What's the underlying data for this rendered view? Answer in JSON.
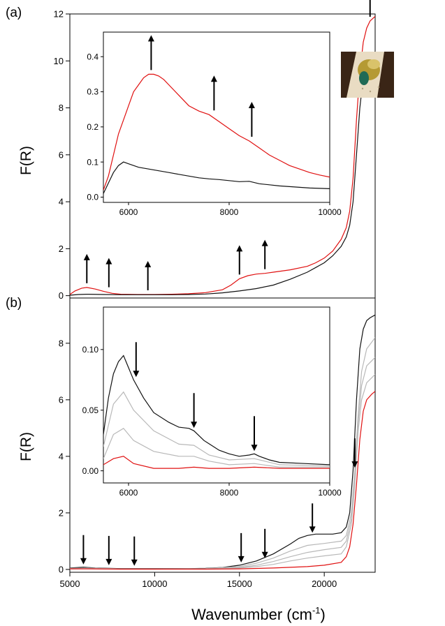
{
  "figure": {
    "xlabel_main": "Wavenumber (cm",
    "xlabel_sup": "-1",
    "ylabel_a": "F(R)",
    "ylabel_b": "F(R)",
    "label_a": "(a)",
    "label_b": "(b)"
  },
  "colors": {
    "red": "#e01010",
    "black": "#111111",
    "gray": "#b8b8b8",
    "axis": "#000000"
  },
  "chart_data": [
    {
      "id": "a-main",
      "type": "line",
      "panel": "(a)",
      "ylabel": "F(R)",
      "xlim": [
        5000,
        23000
      ],
      "ylim": [
        -0.1,
        12
      ],
      "y_ticks": [
        0,
        2,
        4,
        6,
        8,
        10,
        12
      ],
      "x_ticks": [
        5000,
        10000,
        15000,
        20000
      ],
      "series": [
        {
          "color": "#e01010",
          "x": [
            5000,
            5300,
            5700,
            6000,
            6500,
            7000,
            7500,
            8000,
            9000,
            10000,
            11000,
            12000,
            13000,
            14000,
            14500,
            15000,
            15500,
            16000,
            16500,
            17000,
            18000,
            19000,
            19500,
            20000,
            20500,
            21000,
            21300,
            21500,
            21700,
            21900,
            22100,
            22300,
            22500,
            22700,
            23000
          ],
          "y": [
            0.05,
            0.2,
            0.32,
            0.35,
            0.28,
            0.18,
            0.1,
            0.06,
            0.05,
            0.05,
            0.06,
            0.08,
            0.13,
            0.25,
            0.45,
            0.72,
            0.85,
            0.92,
            0.95,
            1.0,
            1.1,
            1.25,
            1.4,
            1.6,
            1.9,
            2.4,
            2.9,
            3.6,
            5.0,
            7.5,
            9.5,
            10.8,
            11.4,
            11.7,
            11.9
          ]
        },
        {
          "color": "#111111",
          "x": [
            5000,
            5500,
            6000,
            7000,
            8000,
            9000,
            10000,
            11000,
            12000,
            13000,
            14000,
            15000,
            16000,
            17000,
            18000,
            19000,
            19500,
            20000,
            20500,
            21000,
            21300,
            21500,
            21700,
            21900,
            22100,
            22300,
            22500,
            22700,
            23000
          ],
          "y": [
            0.02,
            0.05,
            0.06,
            0.05,
            0.04,
            0.04,
            0.04,
            0.04,
            0.05,
            0.07,
            0.12,
            0.2,
            0.3,
            0.45,
            0.7,
            1.0,
            1.2,
            1.4,
            1.7,
            2.1,
            2.5,
            3.0,
            4.0,
            6.0,
            8.0,
            9.3,
            9.9,
            10.2,
            10.4
          ]
        }
      ],
      "arrows": [
        {
          "x": 6000,
          "dir": "up"
        },
        {
          "x": 7300,
          "dir": "up"
        },
        {
          "x": 9600,
          "dir": "up"
        },
        {
          "x": 15000,
          "dir": "up"
        },
        {
          "x": 16500,
          "dir": "up"
        },
        {
          "x": 22700,
          "dir": "up"
        }
      ]
    },
    {
      "id": "a-inset",
      "type": "line",
      "panel": "(a) inset",
      "xlim": [
        5500,
        10000
      ],
      "ylim": [
        -0.015,
        0.47
      ],
      "y_ticks": [
        0.0,
        0.1,
        0.2,
        0.3,
        0.4
      ],
      "y_tick_labels": [
        "0.0",
        "0.1",
        "0.2",
        "0.3",
        "0.4"
      ],
      "x_ticks": [
        6000,
        8000,
        10000
      ],
      "series": [
        {
          "color": "#e01010",
          "x": [
            5500,
            5600,
            5700,
            5800,
            5900,
            6000,
            6100,
            6200,
            6300,
            6400,
            6500,
            6600,
            6700,
            6800,
            6900,
            7000,
            7200,
            7400,
            7600,
            7800,
            8000,
            8200,
            8400,
            8600,
            8800,
            9000,
            9200,
            9400,
            9600,
            9800,
            10000
          ],
          "y": [
            0.02,
            0.06,
            0.12,
            0.18,
            0.22,
            0.26,
            0.3,
            0.32,
            0.34,
            0.35,
            0.35,
            0.345,
            0.335,
            0.32,
            0.305,
            0.29,
            0.26,
            0.245,
            0.235,
            0.215,
            0.195,
            0.175,
            0.16,
            0.14,
            0.12,
            0.105,
            0.09,
            0.08,
            0.07,
            0.063,
            0.057
          ]
        },
        {
          "color": "#111111",
          "x": [
            5500,
            5600,
            5700,
            5800,
            5900,
            6000,
            6200,
            6400,
            6600,
            6800,
            7000,
            7200,
            7400,
            7600,
            7800,
            8000,
            8200,
            8400,
            8600,
            8800,
            9000,
            9200,
            9400,
            9600,
            9800,
            10000
          ],
          "y": [
            0.01,
            0.04,
            0.07,
            0.09,
            0.1,
            0.095,
            0.085,
            0.08,
            0.075,
            0.07,
            0.065,
            0.06,
            0.055,
            0.052,
            0.05,
            0.047,
            0.044,
            0.045,
            0.038,
            0.035,
            0.032,
            0.03,
            0.028,
            0.026,
            0.025,
            0.024
          ]
        }
      ],
      "arrows": [
        {
          "x": 6450,
          "dir": "up"
        },
        {
          "x": 7700,
          "dir": "up"
        },
        {
          "x": 8450,
          "dir": "up"
        }
      ]
    },
    {
      "id": "b-main",
      "type": "line",
      "panel": "(b)",
      "ylabel": "F(R)",
      "xlim": [
        5000,
        23000
      ],
      "ylim": [
        -0.1,
        9.6
      ],
      "y_ticks": [
        0,
        2,
        4,
        6,
        8
      ],
      "x_ticks": [
        5000,
        10000,
        15000,
        20000
      ],
      "x_tick_labels": [
        "5000",
        "10000",
        "15000",
        "20000"
      ],
      "series": [
        {
          "color": "#111111",
          "x": [
            5000,
            5800,
            6500,
            8000,
            10000,
            12000,
            13000,
            14000,
            15000,
            16000,
            17000,
            18000,
            18500,
            19000,
            19500,
            20000,
            20500,
            21000,
            21300,
            21500,
            21700,
            21900,
            22100,
            22300,
            22500,
            22700,
            23000
          ],
          "y": [
            0.05,
            0.08,
            0.05,
            0.03,
            0.03,
            0.03,
            0.04,
            0.07,
            0.15,
            0.3,
            0.55,
            0.9,
            1.1,
            1.2,
            1.25,
            1.25,
            1.25,
            1.3,
            1.5,
            2.0,
            3.5,
            6.0,
            7.8,
            8.5,
            8.8,
            8.9,
            9.0
          ]
        },
        {
          "color": "#b8b8b8",
          "x": [
            5000,
            6000,
            8000,
            10000,
            13000,
            15000,
            16000,
            17000,
            18000,
            19000,
            20000,
            21000,
            21300,
            21600,
            21800,
            22000,
            22200,
            22500,
            23000
          ],
          "y": [
            0.04,
            0.05,
            0.02,
            0.02,
            0.03,
            0.1,
            0.22,
            0.4,
            0.65,
            0.85,
            0.92,
            1.0,
            1.2,
            2.0,
            3.5,
            5.5,
            7.0,
            7.8,
            8.2
          ]
        },
        {
          "color": "#b8b8b8",
          "x": [
            5000,
            6000,
            8000,
            10000,
            13000,
            15000,
            16000,
            17000,
            18000,
            19000,
            20000,
            21000,
            21300,
            21600,
            21800,
            22000,
            22200,
            22500,
            23000
          ],
          "y": [
            0.03,
            0.04,
            0.02,
            0.02,
            0.02,
            0.07,
            0.15,
            0.28,
            0.45,
            0.6,
            0.7,
            0.78,
            1.0,
            1.8,
            3.2,
            5.2,
            6.5,
            7.2,
            7.5
          ]
        },
        {
          "color": "#b8b8b8",
          "x": [
            5000,
            6000,
            8000,
            10000,
            13000,
            15000,
            16000,
            17000,
            18000,
            19000,
            20000,
            21000,
            21300,
            21600,
            21800,
            22000,
            22200,
            22500,
            23000
          ],
          "y": [
            0.02,
            0.03,
            0.01,
            0.01,
            0.02,
            0.05,
            0.1,
            0.18,
            0.3,
            0.4,
            0.48,
            0.55,
            0.8,
            1.6,
            3.0,
            4.9,
            6.0,
            6.6,
            6.9
          ]
        },
        {
          "color": "#e01010",
          "x": [
            5000,
            6000,
            8000,
            10000,
            13000,
            15000,
            17000,
            19000,
            20000,
            21000,
            21300,
            21500,
            21700,
            21900,
            22100,
            22300,
            22500,
            22800,
            23000
          ],
          "y": [
            0.02,
            0.02,
            0.01,
            0.01,
            0.01,
            0.02,
            0.05,
            0.1,
            0.15,
            0.25,
            0.45,
            0.8,
            1.6,
            3.0,
            4.6,
            5.6,
            6.0,
            6.2,
            6.3
          ]
        }
      ],
      "arrows": [
        {
          "x": 5800,
          "dir": "down"
        },
        {
          "x": 7300,
          "dir": "down"
        },
        {
          "x": 8800,
          "dir": "down"
        },
        {
          "x": 15100,
          "dir": "down"
        },
        {
          "x": 16500,
          "dir": "down"
        },
        {
          "x": 19300,
          "dir": "down"
        },
        {
          "x": 21800,
          "dir": "down"
        }
      ]
    },
    {
      "id": "b-inset",
      "type": "line",
      "panel": "(b) inset",
      "xlim": [
        5500,
        10000
      ],
      "ylim": [
        -0.01,
        0.135
      ],
      "y_ticks": [
        0.0,
        0.05,
        0.1
      ],
      "y_tick_labels": [
        "0.00",
        "0.05",
        "0.10"
      ],
      "x_ticks": [
        6000,
        8000,
        10000
      ],
      "series": [
        {
          "color": "#111111",
          "x": [
            5500,
            5600,
            5700,
            5800,
            5900,
            6000,
            6100,
            6300,
            6500,
            6800,
            7000,
            7200,
            7300,
            7500,
            7800,
            8000,
            8200,
            8400,
            8500,
            8600,
            8800,
            9000,
            9500,
            10000
          ],
          "y": [
            0.03,
            0.06,
            0.08,
            0.09,
            0.095,
            0.085,
            0.075,
            0.06,
            0.048,
            0.04,
            0.036,
            0.035,
            0.033,
            0.025,
            0.017,
            0.014,
            0.012,
            0.013,
            0.014,
            0.012,
            0.009,
            0.007,
            0.006,
            0.005
          ]
        },
        {
          "color": "#b8b8b8",
          "x": [
            5500,
            5700,
            5900,
            6100,
            6500,
            7000,
            7300,
            7600,
            8000,
            8500,
            9000,
            10000
          ],
          "y": [
            0.02,
            0.055,
            0.065,
            0.05,
            0.033,
            0.022,
            0.021,
            0.013,
            0.009,
            0.01,
            0.005,
            0.004
          ]
        },
        {
          "color": "#b8b8b8",
          "x": [
            5500,
            5700,
            5900,
            6100,
            6500,
            7000,
            7300,
            7600,
            8000,
            8500,
            9000,
            10000
          ],
          "y": [
            0.01,
            0.03,
            0.035,
            0.025,
            0.016,
            0.012,
            0.012,
            0.008,
            0.005,
            0.006,
            0.003,
            0.003
          ]
        },
        {
          "color": "#e01010",
          "x": [
            5500,
            5700,
            5900,
            6100,
            6500,
            7000,
            7300,
            7600,
            8000,
            8500,
            9000,
            10000
          ],
          "y": [
            0.005,
            0.01,
            0.012,
            0.006,
            0.002,
            0.002,
            0.003,
            0.002,
            0.002,
            0.003,
            0.002,
            0.002
          ]
        }
      ],
      "arrows": [
        {
          "x": 6150,
          "dir": "down"
        },
        {
          "x": 7300,
          "dir": "down"
        },
        {
          "x": 8500,
          "dir": "down"
        }
      ]
    }
  ]
}
